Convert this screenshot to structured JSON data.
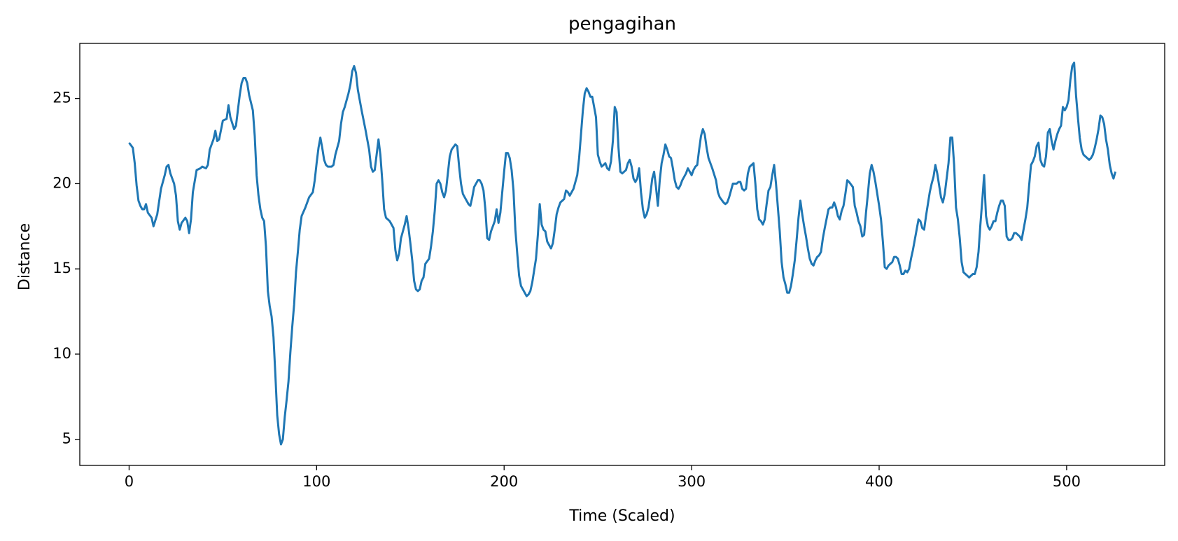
{
  "chart_data": {
    "type": "line",
    "title": "pengagihan",
    "xlabel": "Time (Scaled)",
    "ylabel": "Distance",
    "color": "#1f77b4",
    "grid": false,
    "xlim": [
      -26.3,
      552.3
    ],
    "ylim": [
      3.47,
      28.23
    ],
    "xticks": [
      0,
      100,
      200,
      300,
      400,
      500
    ],
    "yticks": [
      5,
      10,
      15,
      20,
      25
    ],
    "x": [
      0,
      2,
      3,
      4,
      5,
      6,
      7,
      8,
      9,
      10,
      12,
      13,
      15,
      17,
      19,
      20,
      21,
      22,
      24,
      25,
      26,
      27,
      28,
      30,
      31,
      32,
      33,
      34,
      36,
      38,
      39,
      41,
      42,
      43,
      45,
      46,
      47,
      48,
      50,
      52,
      53,
      54,
      56,
      57,
      59,
      60,
      61,
      62,
      63,
      64,
      66,
      67,
      68,
      69,
      70,
      71,
      72,
      73,
      74,
      75,
      76,
      77,
      78,
      79,
      80,
      81,
      82,
      83,
      84,
      85,
      86,
      87,
      88,
      89,
      90,
      91,
      92,
      94,
      96,
      98,
      99,
      100,
      101,
      102,
      103,
      104,
      105,
      106,
      108,
      109,
      110,
      112,
      113,
      114,
      115,
      117,
      118,
      119,
      120,
      121,
      122,
      124,
      126,
      128,
      129,
      130,
      131,
      132,
      133,
      134,
      135,
      136,
      137,
      139,
      141,
      142,
      143,
      144,
      145,
      147,
      148,
      149,
      150,
      151,
      152,
      153,
      154,
      155,
      156,
      157,
      158,
      160,
      161,
      162,
      163,
      164,
      165,
      166,
      167,
      168,
      169,
      170,
      171,
      172,
      174,
      175,
      176,
      177,
      178,
      180,
      181,
      182,
      183,
      184,
      186,
      187,
      188,
      189,
      190,
      191,
      192,
      193,
      195,
      196,
      197,
      198,
      199,
      200,
      201,
      202,
      203,
      204,
      205,
      206,
      207,
      208,
      209,
      210,
      211,
      212,
      213,
      214,
      215,
      216,
      217,
      218,
      219,
      220,
      221,
      222,
      223,
      224,
      225,
      226,
      227,
      228,
      229,
      230,
      232,
      233,
      234,
      235,
      237,
      238,
      239,
      240,
      241,
      242,
      243,
      244,
      245,
      246,
      247,
      248,
      249,
      250,
      251,
      252,
      254,
      255,
      256,
      257,
      258,
      259,
      260,
      261,
      262,
      263,
      265,
      266,
      267,
      268,
      269,
      270,
      271,
      272,
      273,
      274,
      275,
      276,
      277,
      278,
      279,
      280,
      281,
      282,
      283,
      284,
      285,
      286,
      287,
      288,
      289,
      290,
      291,
      292,
      293,
      294,
      295,
      296,
      297,
      298,
      299,
      300,
      301,
      302,
      303,
      304,
      305,
      306,
      307,
      308,
      309,
      311,
      313,
      314,
      315,
      317,
      318,
      319,
      320,
      321,
      322,
      324,
      325,
      326,
      327,
      328,
      329,
      330,
      331,
      332,
      333,
      334,
      335,
      336,
      337,
      338,
      339,
      340,
      341,
      342,
      343,
      344,
      345,
      346,
      347,
      348,
      349,
      350,
      351,
      352,
      353,
      354,
      355,
      356,
      357,
      358,
      359,
      360,
      361,
      362,
      363,
      364,
      365,
      366,
      367,
      368,
      369,
      370,
      371,
      373,
      374,
      375,
      376,
      377,
      378,
      379,
      380,
      381,
      382,
      383,
      384,
      386,
      387,
      388,
      389,
      390,
      391,
      392,
      393,
      394,
      395,
      396,
      397,
      398,
      399,
      400,
      401,
      402,
      403,
      404,
      405,
      406,
      407,
      408,
      409,
      410,
      411,
      412,
      413,
      414,
      415,
      416,
      417,
      418,
      419,
      420,
      421,
      422,
      423,
      424,
      425,
      426,
      427,
      428,
      429,
      430,
      431,
      432,
      433,
      434,
      435,
      436,
      437,
      438,
      439,
      440,
      441,
      442,
      443,
      444,
      445,
      446,
      447,
      448,
      449,
      450,
      451,
      452,
      453,
      454,
      455,
      456,
      457,
      458,
      459,
      460,
      461,
      462,
      463,
      464,
      465,
      466,
      467,
      468,
      469,
      470,
      471,
      472,
      473,
      474,
      475,
      476,
      477,
      478,
      479,
      480,
      481,
      482,
      483,
      484,
      485,
      486,
      487,
      488,
      489,
      490,
      491,
      492,
      493,
      494,
      495,
      496,
      497,
      498,
      499,
      500,
      501,
      502,
      503,
      504,
      505,
      506,
      507,
      508,
      509,
      510,
      511,
      512,
      513,
      514,
      515,
      516,
      517,
      518,
      519,
      520,
      521,
      522,
      523,
      524,
      525,
      526
    ],
    "values": [
      22.4,
      22.1,
      21.2,
      19.9,
      19.0,
      18.7,
      18.5,
      18.5,
      18.8,
      18.3,
      18.0,
      17.5,
      18.2,
      19.7,
      20.5,
      21.0,
      21.1,
      20.6,
      20.0,
      19.3,
      17.8,
      17.3,
      17.7,
      18.0,
      17.8,
      17.1,
      17.9,
      19.5,
      20.8,
      20.9,
      21.0,
      20.9,
      21.1,
      22.0,
      22.6,
      23.1,
      22.5,
      22.6,
      23.7,
      23.8,
      24.6,
      23.9,
      23.2,
      23.4,
      25.2,
      25.9,
      26.2,
      26.2,
      25.9,
      25.2,
      24.3,
      22.8,
      20.5,
      19.3,
      18.5,
      18.0,
      17.8,
      16.3,
      13.7,
      12.8,
      12.2,
      11.0,
      8.8,
      6.4,
      5.3,
      4.7,
      5.0,
      6.3,
      7.3,
      8.4,
      10.1,
      11.6,
      12.9,
      14.8,
      16.0,
      17.3,
      18.1,
      18.6,
      19.2,
      19.5,
      20.2,
      21.2,
      22.1,
      22.7,
      22.1,
      21.4,
      21.1,
      21.0,
      21.0,
      21.1,
      21.7,
      22.5,
      23.5,
      24.2,
      24.5,
      25.3,
      25.8,
      26.6,
      26.9,
      26.5,
      25.5,
      24.3,
      23.2,
      22.0,
      21.0,
      20.7,
      20.8,
      21.7,
      22.6,
      21.7,
      20.2,
      18.5,
      18.0,
      17.8,
      17.4,
      16.1,
      15.5,
      15.9,
      16.8,
      17.6,
      18.1,
      17.4,
      16.5,
      15.5,
      14.3,
      13.8,
      13.7,
      13.8,
      14.3,
      14.5,
      15.3,
      15.6,
      16.3,
      17.2,
      18.4,
      20.0,
      20.2,
      20.0,
      19.5,
      19.2,
      19.6,
      20.6,
      21.6,
      22.0,
      22.3,
      22.2,
      21.0,
      20.0,
      19.4,
      19.0,
      18.8,
      18.7,
      19.2,
      19.8,
      20.2,
      20.2,
      20.0,
      19.6,
      18.5,
      16.8,
      16.7,
      17.2,
      17.8,
      18.5,
      17.7,
      18.3,
      19.5,
      20.7,
      21.8,
      21.8,
      21.5,
      20.8,
      19.6,
      17.3,
      15.9,
      14.6,
      14.0,
      13.8,
      13.6,
      13.4,
      13.5,
      13.7,
      14.2,
      14.9,
      15.6,
      17.0,
      18.8,
      17.6,
      17.3,
      17.2,
      16.6,
      16.4,
      16.2,
      16.5,
      17.3,
      18.2,
      18.6,
      18.9,
      19.1,
      19.6,
      19.5,
      19.3,
      19.7,
      20.1,
      20.5,
      21.5,
      22.9,
      24.3,
      25.3,
      25.6,
      25.4,
      25.1,
      25.1,
      24.5,
      23.9,
      21.7,
      21.3,
      21.0,
      21.2,
      20.9,
      20.8,
      21.3,
      22.5,
      24.5,
      24.2,
      22.1,
      20.7,
      20.6,
      20.8,
      21.2,
      21.4,
      21.0,
      20.3,
      20.1,
      20.3,
      20.9,
      19.5,
      18.5,
      18.0,
      18.2,
      18.6,
      19.4,
      20.3,
      20.7,
      19.8,
      18.7,
      20.2,
      21.2,
      21.7,
      22.3,
      22.0,
      21.6,
      21.5,
      20.9,
      20.2,
      19.8,
      19.7,
      19.9,
      20.2,
      20.4,
      20.6,
      20.9,
      20.7,
      20.5,
      20.8,
      21.0,
      21.1,
      22.0,
      22.8,
      23.2,
      22.9,
      22.1,
      21.5,
      20.9,
      20.2,
      19.5,
      19.2,
      18.9,
      18.8,
      18.9,
      19.2,
      19.6,
      20.0,
      20.0,
      20.1,
      20.1,
      19.7,
      19.6,
      19.7,
      20.6,
      21.0,
      21.1,
      21.2,
      20.0,
      18.5,
      17.9,
      17.8,
      17.6,
      17.9,
      18.8,
      19.6,
      19.8,
      20.5,
      21.1,
      20.0,
      18.6,
      17.2,
      15.4,
      14.5,
      14.1,
      13.6,
      13.6,
      14.0,
      14.7,
      15.5,
      16.7,
      18.0,
      19.0,
      18.2,
      17.5,
      16.9,
      16.2,
      15.6,
      15.3,
      15.2,
      15.5,
      15.7,
      15.8,
      16.0,
      16.8,
      17.4,
      18.5,
      18.6,
      18.6,
      18.9,
      18.6,
      18.1,
      17.9,
      18.4,
      18.7,
      19.4,
      20.2,
      20.1,
      19.8,
      18.7,
      18.3,
      17.8,
      17.5,
      16.9,
      17.0,
      18.3,
      19.4,
      20.6,
      21.1,
      20.7,
      20.1,
      19.4,
      18.7,
      17.9,
      16.6,
      15.1,
      15.0,
      15.2,
      15.3,
      15.4,
      15.7,
      15.7,
      15.6,
      15.2,
      14.7,
      14.7,
      14.9,
      14.8,
      15.0,
      15.6,
      16.1,
      16.7,
      17.3,
      17.9,
      17.8,
      17.4,
      17.3,
      18.1,
      18.8,
      19.5,
      20.0,
      20.4,
      21.1,
      20.6,
      19.9,
      19.2,
      18.9,
      19.4,
      20.3,
      21.2,
      22.7,
      22.7,
      21.1,
      18.6,
      17.9,
      16.8,
      15.4,
      14.8,
      14.7,
      14.6,
      14.5,
      14.6,
      14.7,
      14.7,
      15.1,
      16.0,
      17.6,
      19.0,
      20.5,
      18.1,
      17.5,
      17.3,
      17.5,
      17.8,
      17.8,
      18.3,
      18.7,
      19.0,
      19.0,
      18.7,
      16.9,
      16.7,
      16.7,
      16.8,
      17.1,
      17.1,
      17.0,
      16.9,
      16.7,
      17.3,
      17.9,
      18.6,
      19.9,
      21.1,
      21.3,
      21.6,
      22.2,
      22.4,
      21.4,
      21.1,
      21.0,
      21.6,
      23.0,
      23.2,
      22.5,
      22.0,
      22.5,
      22.9,
      23.2,
      23.4,
      24.5,
      24.3,
      24.5,
      24.9,
      26.1,
      26.9,
      27.1,
      25.2,
      23.9,
      22.7,
      22.0,
      21.7,
      21.6,
      21.5,
      21.4,
      21.5,
      21.7,
      22.1,
      22.6,
      23.2,
      24.0,
      23.9,
      23.5,
      22.6,
      22.0,
      21.1,
      20.6,
      20.3,
      20.7
    ]
  }
}
